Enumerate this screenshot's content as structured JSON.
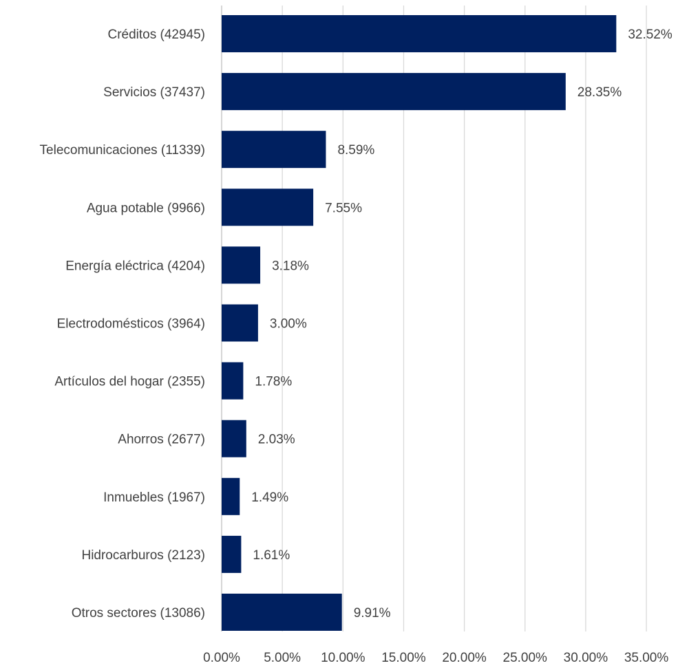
{
  "chart_data": {
    "type": "bar",
    "orientation": "horizontal",
    "title": "",
    "xlabel": "",
    "ylabel": "",
    "categories": [
      "Créditos (42945)",
      "Servicios (37437)",
      "Telecomunicaciones (11339)",
      "Agua potable (9966)",
      "Energía eléctrica (4204)",
      "Electrodomésticos (3964)",
      "Artículos del hogar (2355)",
      "Ahorros (2677)",
      "Inmuebles (1967)",
      "Hidrocarburos (2123)",
      "Otros sectores (13086)"
    ],
    "values": [
      32.52,
      28.35,
      8.59,
      7.55,
      3.18,
      3.0,
      1.78,
      2.03,
      1.49,
      1.61,
      9.91
    ],
    "value_labels": [
      "32.52%",
      "28.35%",
      "8.59%",
      "7.55%",
      "3.18%",
      "3.00%",
      "1.78%",
      "2.03%",
      "1.49%",
      "1.61%",
      "9.91%"
    ],
    "xlim": [
      0,
      35
    ],
    "xticks": [
      0,
      5,
      10,
      15,
      20,
      25,
      30,
      35
    ],
    "xtick_labels": [
      "0.00%",
      "5.00%",
      "10.00%",
      "15.00%",
      "20.00%",
      "25.00%",
      "30.00%",
      "35.00%"
    ],
    "grid": true,
    "legend": "none",
    "bar_color": "#002060",
    "grid_color": "#d9d9d9",
    "text_color": "#404040"
  }
}
